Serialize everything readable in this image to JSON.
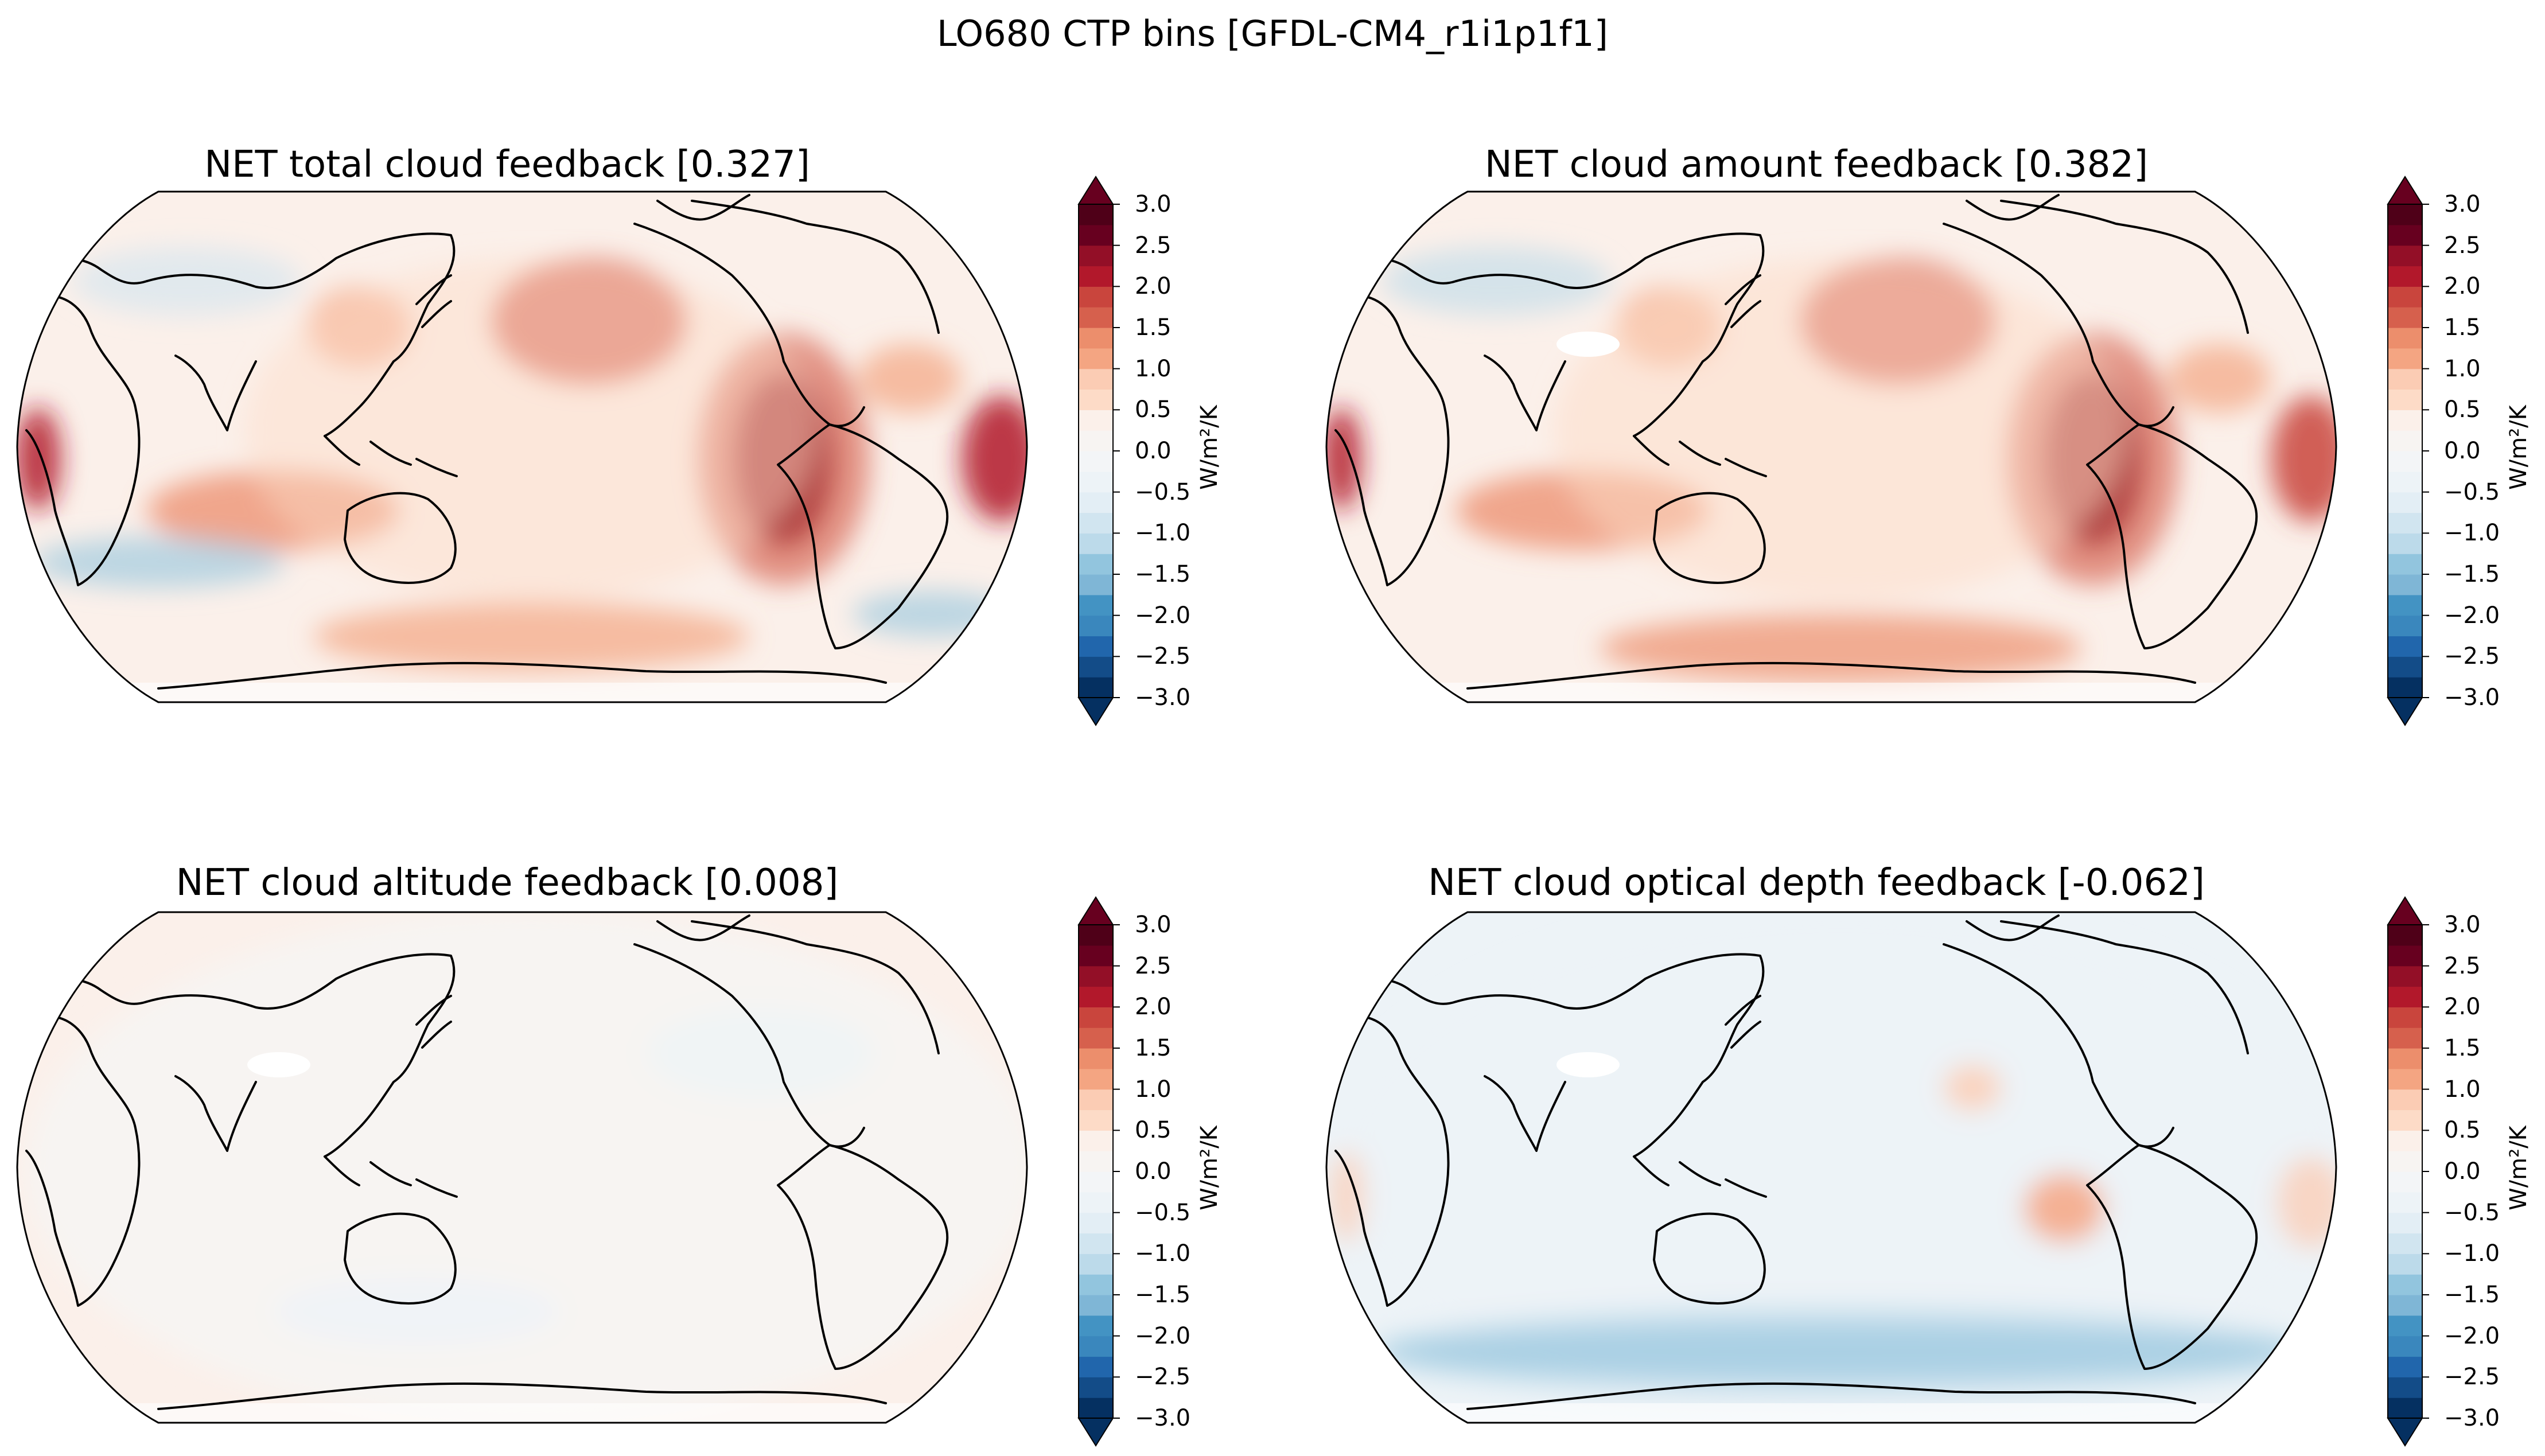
{
  "figure": {
    "title": "LO680 CTP bins [GFDL-CM4_r1i1p1f1]"
  },
  "colorbar": {
    "ticks": [
      "3.0",
      "2.5",
      "2.0",
      "1.5",
      "1.0",
      "0.5",
      "0.0",
      "−0.5",
      "−1.0",
      "−1.5",
      "−2.0",
      "−2.5",
      "−3.0"
    ],
    "unit_label": "W/m²/K",
    "range": [
      -3.0,
      3.0
    ],
    "extend": "both",
    "levels": 24,
    "colors": [
      "#053061",
      "#134c88",
      "#2166ac",
      "#3a87bd",
      "#4393c3",
      "#7fb6d6",
      "#92c5de",
      "#bcdaea",
      "#d1e5f0",
      "#e3eef5",
      "#edf3f7",
      "#f3f5f7",
      "#f7f4f2",
      "#fbf0ea",
      "#fddbc7",
      "#fbccb4",
      "#f4a582",
      "#ec8e6c",
      "#d6604d",
      "#c9453d",
      "#b2182b",
      "#930f27",
      "#67001f",
      "#4f0018"
    ]
  },
  "map": {
    "projection": "Robinson",
    "central_longitude": "180",
    "coastlines_color": "#000000"
  },
  "panels": [
    {
      "id": "total",
      "title": "NET total cloud feedback [0.327]",
      "global_mean": 0.327
    },
    {
      "id": "amount",
      "title": "NET cloud amount feedback [0.382]",
      "global_mean": 0.382
    },
    {
      "id": "altitude",
      "title": "NET cloud altitude feedback [0.008]",
      "global_mean": 0.008
    },
    {
      "id": "optical_depth",
      "title": "NET cloud optical depth feedback [-0.062]",
      "global_mean": -0.062
    }
  ]
}
